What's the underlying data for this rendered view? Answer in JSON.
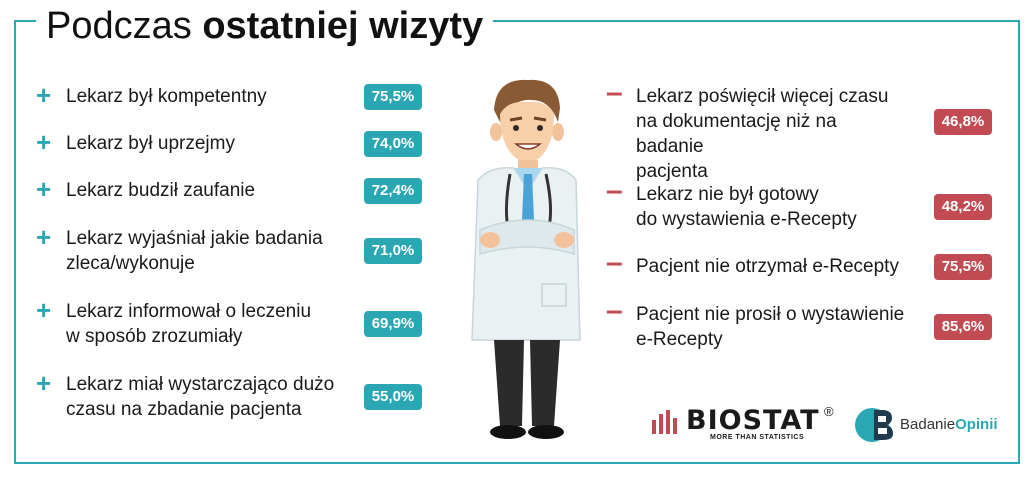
{
  "title": {
    "light": "Podczas",
    "bold": "ostatniej wizyty"
  },
  "colors": {
    "accent": "#2aa7b2",
    "negative": "#c24a52"
  },
  "chart_data": {
    "type": "table",
    "title": "Podczas ostatniej wizyty",
    "positive": [
      {
        "label_lines": [
          "Lekarz był kompetentny"
        ],
        "value": "75,5%"
      },
      {
        "label_lines": [
          "Lekarz był uprzejmy"
        ],
        "value": "74,0%"
      },
      {
        "label_lines": [
          "Lekarz budził zaufanie"
        ],
        "value": "72,4%"
      },
      {
        "label_lines": [
          "Lekarz wyjaśniał jakie badania",
          "zleca/wykonuje"
        ],
        "value": "71,0%"
      },
      {
        "label_lines": [
          "Lekarz informował o leczeniu",
          "w sposób zrozumiały"
        ],
        "value": "69,9%"
      },
      {
        "label_lines": [
          "Lekarz miał wystarczająco dużo",
          "czasu na zbadanie pacjenta"
        ],
        "value": "55,0%"
      }
    ],
    "negative": [
      {
        "label_lines": [
          "Lekarz poświęcił więcej czasu",
          "na dokumentację niż na badanie",
          "pacjenta"
        ],
        "value": "46,8%"
      },
      {
        "label_lines": [
          "Lekarz nie był gotowy",
          "do wystawienia e-Recepty"
        ],
        "value": "48,2%"
      },
      {
        "label_lines": [
          "Pacjent nie otrzymał e-Recepty"
        ],
        "value": "75,5%"
      },
      {
        "label_lines": [
          "Pacjent nie prosił o wystawienie",
          "e-Recepty"
        ],
        "value": "85,6%"
      }
    ]
  },
  "logos": {
    "biostat": {
      "name": "BIOSTAT",
      "reg": "®",
      "tagline": "MORE THAN STATISTICS"
    },
    "badanie": {
      "word1": "Badanie",
      "word2": "Opinii"
    }
  }
}
